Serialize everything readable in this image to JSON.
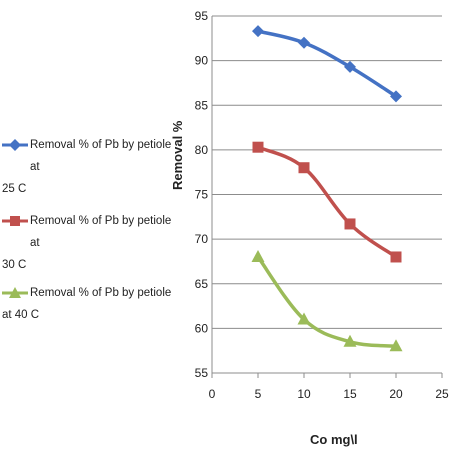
{
  "chart_data": {
    "type": "line",
    "xlabel": "Co mg\\l",
    "ylabel": "Removal %",
    "xlim": [
      0,
      25
    ],
    "ylim": [
      55,
      95
    ],
    "x_ticks": [
      "0",
      "5",
      "10",
      "15",
      "20",
      "25"
    ],
    "y_ticks": [
      "55",
      "60",
      "65",
      "70",
      "75",
      "80",
      "85",
      "90",
      "95"
    ],
    "grid": true,
    "legend_position": "left",
    "series": [
      {
        "name": "Removal % of Pb by petiole at 25 C",
        "color": "#4472C4",
        "marker": "diamond",
        "x": [
          5,
          10,
          15,
          20
        ],
        "y": [
          93.3,
          92.0,
          89.3,
          86.0
        ]
      },
      {
        "name": "Removal % of Pb by petiole at 30 C",
        "color": "#C0504D",
        "marker": "square",
        "x": [
          5,
          10,
          15,
          20
        ],
        "y": [
          80.3,
          78.0,
          71.7,
          68.0
        ]
      },
      {
        "name": "Removal  % of Pb by petiole at 40 C",
        "color": "#9BBB59",
        "marker": "triangle",
        "x": [
          5,
          10,
          15,
          20
        ],
        "y": [
          68.0,
          61.0,
          58.5,
          58.0
        ]
      }
    ]
  },
  "legend": [
    {
      "line1": "Removal % of Pb by petiole at",
      "line2": "25 C"
    },
    {
      "line1": "Removal % of Pb by petiole at",
      "line2": "30 C"
    },
    {
      "line1": "Removal  % of Pb by petiole",
      "line2": "at 40 C"
    }
  ]
}
